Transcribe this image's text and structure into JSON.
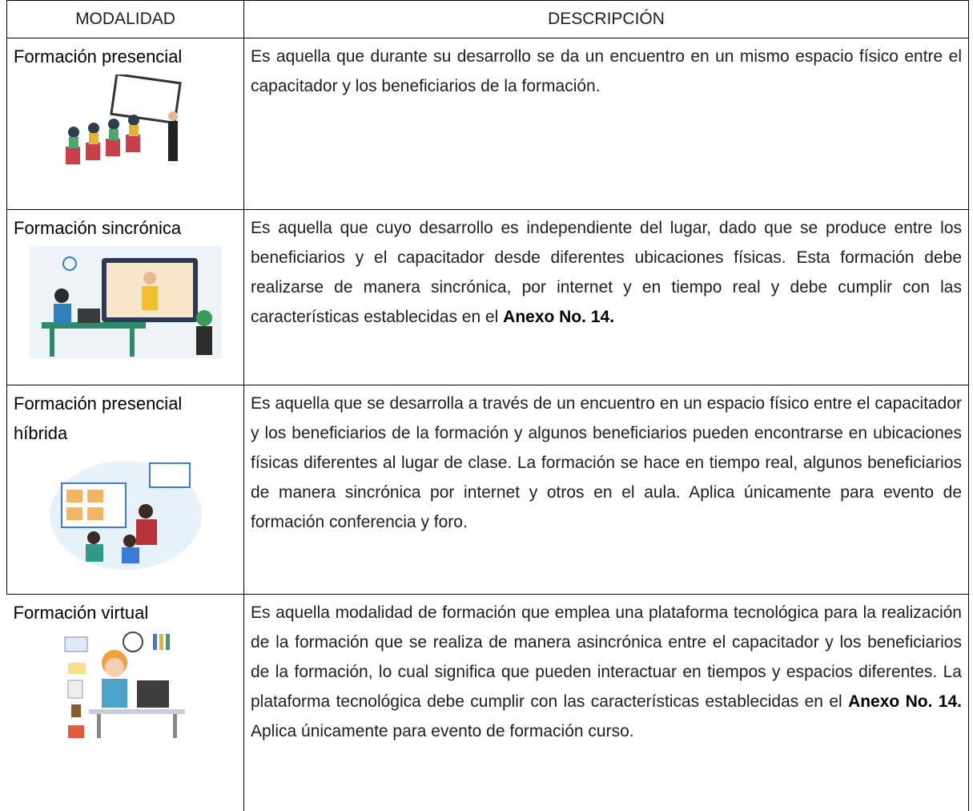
{
  "table": {
    "headers": [
      "MODALIDAD",
      "DESCRIPCIÓN"
    ],
    "rows": [
      {
        "modality": "Formación presencial",
        "description": [
          "Es aquella que durante su desarrollo se da un encuentro en un mismo espacio físico entre el capacitador y los beneficiarios de la formación."
        ]
      },
      {
        "modality": "Formación sincrónica",
        "description": [
          "Es aquella que cuyo desarrollo es independiente del lugar, dado que se produce entre los beneficiarios y el capacitador desde diferentes ubicaciones físicas. Esta formación debe realizarse de manera sincrónica, por internet y en tiempo real y debe cumplir con las características establecidas en el ",
          "Anexo No. 14."
        ]
      },
      {
        "modality": "Formación presencial híbrida",
        "description": [
          "Es aquella que se desarrolla a través de un encuentro en un espacio físico entre el capacitador y los beneficiarios de la formación y algunos beneficiarios pueden encontrarse en ubicaciones físicas diferentes al lugar de clase. La formación se hace en tiempo real, algunos beneficiarios de manera sincrónica por internet y otros en el aula. Aplica únicamente para evento de formación conferencia y foro."
        ]
      },
      {
        "modality": "Formación virtual",
        "description": [
          "Es aquella modalidad de formación que emplea una plataforma tecnológica para la realización de la formación que se realiza de manera asincrónica entre el capacitador y los beneficiarios de la formación, lo cual significa que pueden interactuar en tiempos y espacios diferentes. La plataforma tecnológica debe cumplir con las características establecidas en el ",
          "Anexo No. 14.",
          "  Aplica únicamente para evento de formación curso."
        ]
      }
    ]
  }
}
